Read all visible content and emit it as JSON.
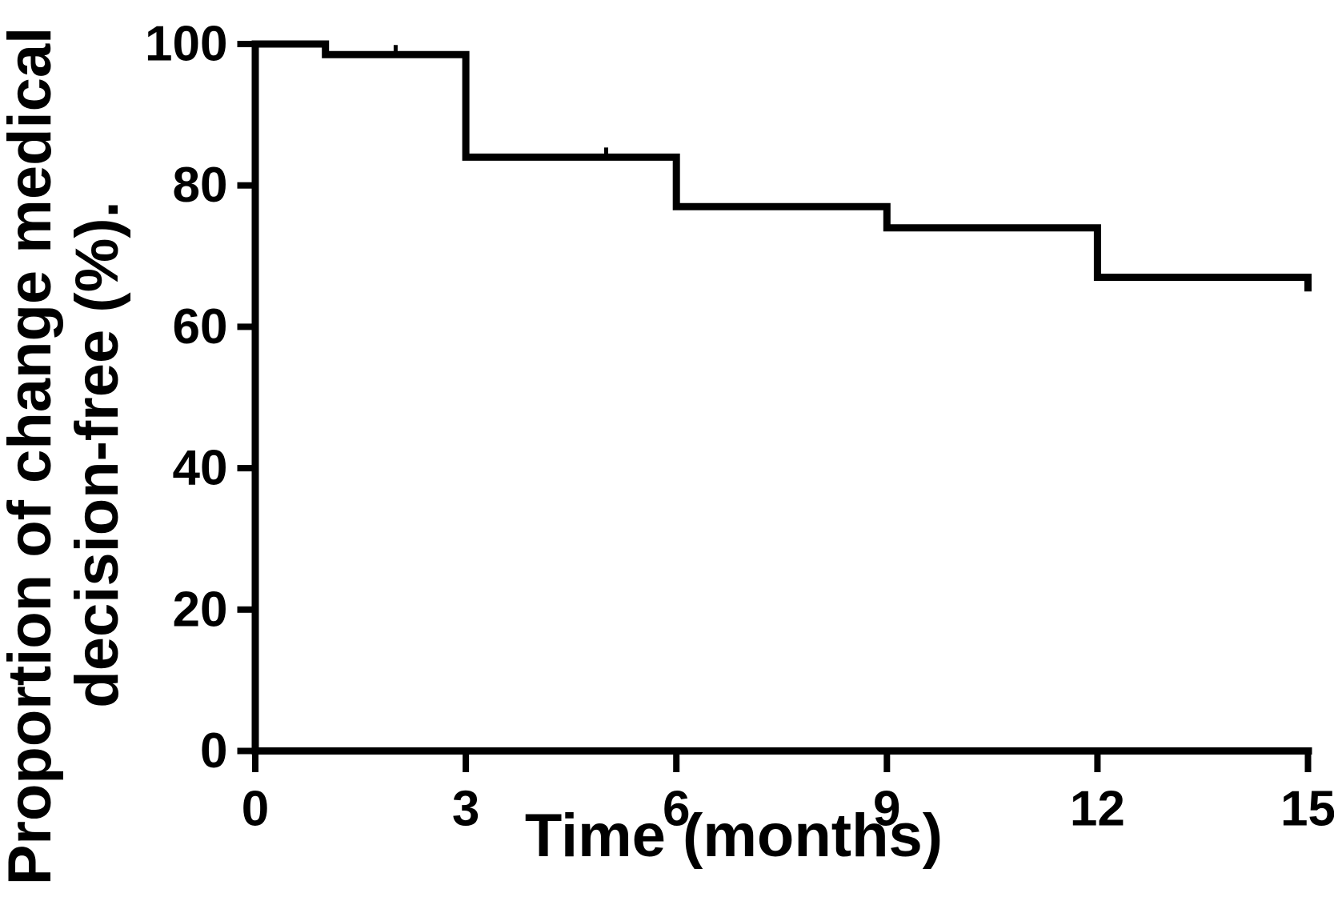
{
  "figure": {
    "background": "#ffffff",
    "ink_color": "#000000"
  },
  "chart_data": {
    "type": "line",
    "subtype": "kaplan_meier_step",
    "title": "",
    "xlabel": "Time (months)",
    "ylabel": "Proportion of change medical decision-free (%).",
    "ylabel_lines": [
      "Proportion of change medical",
      "decision-free (%)."
    ],
    "x_ticks": [
      0,
      3,
      6,
      9,
      12,
      15
    ],
    "y_ticks": [
      0,
      20,
      40,
      60,
      80,
      100
    ],
    "xlim": [
      0,
      15
    ],
    "ylim": [
      0,
      100
    ],
    "grid": false,
    "legend": "none",
    "series": [
      {
        "name": "Change medical decision-free",
        "color": "#000000",
        "step_points": [
          [
            0,
            100
          ],
          [
            1,
            98.5
          ],
          [
            3,
            84
          ],
          [
            6,
            77
          ],
          [
            9,
            74
          ],
          [
            12,
            67
          ],
          [
            15,
            65
          ]
        ],
        "censor_marks": [
          [
            2,
            98.5
          ],
          [
            5,
            84
          ]
        ]
      }
    ]
  }
}
